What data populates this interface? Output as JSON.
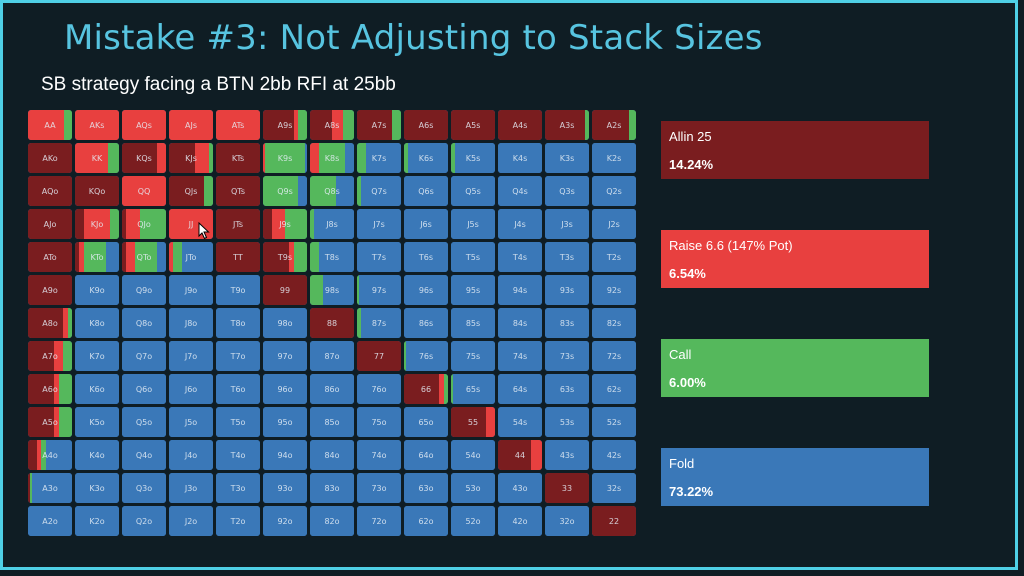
{
  "title": "Mistake #3: Not Adjusting to Stack Sizes",
  "subtitle": "SB strategy facing a BTN 2bb RFI at 25bb",
  "colors": {
    "allin": "#7a1d1f",
    "raise": "#e8403f",
    "call": "#55b85c",
    "fold": "#3a78b8",
    "accent": "#4fd0e6"
  },
  "legend": [
    {
      "label": "Allin 25",
      "pct": "14.24%",
      "color": "#7a1d1f"
    },
    {
      "label": "Raise 6.6 (147% Pot)",
      "pct": "6.54%",
      "color": "#e8403f"
    },
    {
      "label": "Call",
      "pct": "6.00%",
      "color": "#55b85c"
    },
    {
      "label": "Fold",
      "pct": "73.22%",
      "color": "#3a78b8"
    }
  ],
  "hands": [
    {
      "label": "AA",
      "mix": [
        0,
        0.82,
        0.18,
        0
      ]
    },
    {
      "label": "AKs",
      "mix": [
        0,
        1,
        0,
        0
      ]
    },
    {
      "label": "AQs",
      "mix": [
        0,
        1,
        0,
        0
      ]
    },
    {
      "label": "AJs",
      "mix": [
        0,
        1,
        0,
        0
      ]
    },
    {
      "label": "ATs",
      "mix": [
        0,
        1,
        0,
        0
      ]
    },
    {
      "label": "A9s",
      "mix": [
        0.7,
        0.1,
        0.2,
        0
      ]
    },
    {
      "label": "A8s",
      "mix": [
        0.5,
        0.25,
        0.25,
        0
      ]
    },
    {
      "label": "A7s",
      "mix": [
        0.8,
        0,
        0.2,
        0
      ]
    },
    {
      "label": "A6s",
      "mix": [
        1,
        0,
        0,
        0
      ]
    },
    {
      "label": "A5s",
      "mix": [
        1,
        0,
        0,
        0
      ]
    },
    {
      "label": "A4s",
      "mix": [
        1,
        0,
        0,
        0
      ]
    },
    {
      "label": "A3s",
      "mix": [
        0.9,
        0,
        0.1,
        0
      ]
    },
    {
      "label": "A2s",
      "mix": [
        0.85,
        0,
        0.15,
        0
      ]
    },
    {
      "label": "AKo",
      "mix": [
        1,
        0,
        0,
        0
      ]
    },
    {
      "label": "KK",
      "mix": [
        0,
        0.75,
        0.25,
        0
      ]
    },
    {
      "label": "KQs",
      "mix": [
        0.8,
        0.2,
        0,
        0
      ]
    },
    {
      "label": "KJs",
      "mix": [
        0.6,
        0.3,
        0.1,
        0
      ]
    },
    {
      "label": "KTs",
      "mix": [
        1,
        0,
        0,
        0
      ]
    },
    {
      "label": "K9s",
      "mix": [
        0,
        0.05,
        0.9,
        0.05
      ]
    },
    {
      "label": "K8s",
      "mix": [
        0,
        0.2,
        0.6,
        0.2
      ]
    },
    {
      "label": "K7s",
      "mix": [
        0,
        0,
        0.2,
        0.8
      ]
    },
    {
      "label": "K6s",
      "mix": [
        0,
        0,
        0.1,
        0.9
      ]
    },
    {
      "label": "K5s",
      "mix": [
        0,
        0,
        0.1,
        0.9
      ]
    },
    {
      "label": "K4s",
      "mix": [
        0,
        0,
        0,
        1
      ]
    },
    {
      "label": "K3s",
      "mix": [
        0,
        0,
        0,
        1
      ]
    },
    {
      "label": "K2s",
      "mix": [
        0,
        0,
        0,
        1
      ]
    },
    {
      "label": "AQo",
      "mix": [
        1,
        0,
        0,
        0
      ]
    },
    {
      "label": "KQo",
      "mix": [
        1,
        0,
        0,
        0
      ]
    },
    {
      "label": "QQ",
      "mix": [
        0,
        1,
        0,
        0
      ]
    },
    {
      "label": "QJs",
      "mix": [
        0.8,
        0,
        0.2,
        0
      ]
    },
    {
      "label": "QTs",
      "mix": [
        1,
        0,
        0,
        0
      ]
    },
    {
      "label": "Q9s",
      "mix": [
        0,
        0,
        0.8,
        0.2
      ]
    },
    {
      "label": "Q8s",
      "mix": [
        0,
        0,
        0.6,
        0.4
      ]
    },
    {
      "label": "Q7s",
      "mix": [
        0,
        0,
        0.1,
        0.9
      ]
    },
    {
      "label": "Q6s",
      "mix": [
        0,
        0,
        0,
        1
      ]
    },
    {
      "label": "Q5s",
      "mix": [
        0,
        0,
        0,
        1
      ]
    },
    {
      "label": "Q4s",
      "mix": [
        0,
        0,
        0,
        1
      ]
    },
    {
      "label": "Q3s",
      "mix": [
        0,
        0,
        0,
        1
      ]
    },
    {
      "label": "Q2s",
      "mix": [
        0,
        0,
        0,
        1
      ]
    },
    {
      "label": "AJo",
      "mix": [
        1,
        0,
        0,
        0
      ]
    },
    {
      "label": "KJo",
      "mix": [
        0.2,
        0.6,
        0.2,
        0
      ]
    },
    {
      "label": "QJo",
      "mix": [
        0.1,
        0.3,
        0.6,
        0
      ]
    },
    {
      "label": "JJ",
      "mix": [
        0,
        1,
        0,
        0
      ]
    },
    {
      "label": "JTs",
      "mix": [
        1,
        0,
        0,
        0
      ]
    },
    {
      "label": "J9s",
      "mix": [
        0.2,
        0.3,
        0.5,
        0
      ]
    },
    {
      "label": "J8s",
      "mix": [
        0,
        0,
        0.1,
        0.9
      ]
    },
    {
      "label": "J7s",
      "mix": [
        0,
        0,
        0,
        1
      ]
    },
    {
      "label": "J6s",
      "mix": [
        0,
        0,
        0,
        1
      ]
    },
    {
      "label": "J5s",
      "mix": [
        0,
        0,
        0,
        1
      ]
    },
    {
      "label": "J4s",
      "mix": [
        0,
        0,
        0,
        1
      ]
    },
    {
      "label": "J3s",
      "mix": [
        0,
        0,
        0,
        1
      ]
    },
    {
      "label": "J2s",
      "mix": [
        0,
        0,
        0,
        1
      ]
    },
    {
      "label": "ATo",
      "mix": [
        1,
        0,
        0,
        0
      ]
    },
    {
      "label": "KTo",
      "mix": [
        0.1,
        0.1,
        0.5,
        0.3
      ]
    },
    {
      "label": "QTo",
      "mix": [
        0.1,
        0.2,
        0.5,
        0.2
      ]
    },
    {
      "label": "JTo",
      "mix": [
        0,
        0.1,
        0.2,
        0.7
      ]
    },
    {
      "label": "TT",
      "mix": [
        1,
        0,
        0,
        0
      ]
    },
    {
      "label": "T9s",
      "mix": [
        0.6,
        0.1,
        0.3,
        0
      ]
    },
    {
      "label": "T8s",
      "mix": [
        0,
        0,
        0.2,
        0.8
      ]
    },
    {
      "label": "T7s",
      "mix": [
        0,
        0,
        0,
        1
      ]
    },
    {
      "label": "T6s",
      "mix": [
        0,
        0,
        0,
        1
      ]
    },
    {
      "label": "T5s",
      "mix": [
        0,
        0,
        0,
        1
      ]
    },
    {
      "label": "T4s",
      "mix": [
        0,
        0,
        0,
        1
      ]
    },
    {
      "label": "T3s",
      "mix": [
        0,
        0,
        0,
        1
      ]
    },
    {
      "label": "T2s",
      "mix": [
        0,
        0,
        0,
        1
      ]
    },
    {
      "label": "A9o",
      "mix": [
        1,
        0,
        0,
        0
      ]
    },
    {
      "label": "K9o",
      "mix": [
        0,
        0,
        0,
        1
      ]
    },
    {
      "label": "Q9o",
      "mix": [
        0,
        0,
        0,
        1
      ]
    },
    {
      "label": "J9o",
      "mix": [
        0,
        0,
        0,
        1
      ]
    },
    {
      "label": "T9o",
      "mix": [
        0,
        0,
        0,
        1
      ]
    },
    {
      "label": "99",
      "mix": [
        1,
        0,
        0,
        0
      ]
    },
    {
      "label": "98s",
      "mix": [
        0,
        0,
        0.3,
        0.7
      ]
    },
    {
      "label": "97s",
      "mix": [
        0,
        0,
        0.05,
        0.95
      ]
    },
    {
      "label": "96s",
      "mix": [
        0,
        0,
        0,
        1
      ]
    },
    {
      "label": "95s",
      "mix": [
        0,
        0,
        0,
        1
      ]
    },
    {
      "label": "94s",
      "mix": [
        0,
        0,
        0,
        1
      ]
    },
    {
      "label": "93s",
      "mix": [
        0,
        0,
        0,
        1
      ]
    },
    {
      "label": "92s",
      "mix": [
        0,
        0,
        0,
        1
      ]
    },
    {
      "label": "A8o",
      "mix": [
        0.8,
        0.1,
        0.1,
        0
      ]
    },
    {
      "label": "K8o",
      "mix": [
        0,
        0,
        0,
        1
      ]
    },
    {
      "label": "Q8o",
      "mix": [
        0,
        0,
        0,
        1
      ]
    },
    {
      "label": "J8o",
      "mix": [
        0,
        0,
        0,
        1
      ]
    },
    {
      "label": "T8o",
      "mix": [
        0,
        0,
        0,
        1
      ]
    },
    {
      "label": "98o",
      "mix": [
        0,
        0,
        0,
        1
      ]
    },
    {
      "label": "88",
      "mix": [
        1,
        0,
        0,
        0
      ]
    },
    {
      "label": "87s",
      "mix": [
        0,
        0,
        0.1,
        0.9
      ]
    },
    {
      "label": "86s",
      "mix": [
        0,
        0,
        0,
        1
      ]
    },
    {
      "label": "85s",
      "mix": [
        0,
        0,
        0,
        1
      ]
    },
    {
      "label": "84s",
      "mix": [
        0,
        0,
        0,
        1
      ]
    },
    {
      "label": "83s",
      "mix": [
        0,
        0,
        0,
        1
      ]
    },
    {
      "label": "82s",
      "mix": [
        0,
        0,
        0,
        1
      ]
    },
    {
      "label": "A7o",
      "mix": [
        0.6,
        0.2,
        0.2,
        0
      ]
    },
    {
      "label": "K7o",
      "mix": [
        0,
        0,
        0,
        1
      ]
    },
    {
      "label": "Q7o",
      "mix": [
        0,
        0,
        0,
        1
      ]
    },
    {
      "label": "J7o",
      "mix": [
        0,
        0,
        0,
        1
      ]
    },
    {
      "label": "T7o",
      "mix": [
        0,
        0,
        0,
        1
      ]
    },
    {
      "label": "97o",
      "mix": [
        0,
        0,
        0,
        1
      ]
    },
    {
      "label": "87o",
      "mix": [
        0,
        0,
        0,
        1
      ]
    },
    {
      "label": "77",
      "mix": [
        1,
        0,
        0,
        0
      ]
    },
    {
      "label": "76s",
      "mix": [
        0,
        0,
        0.05,
        0.95
      ]
    },
    {
      "label": "75s",
      "mix": [
        0,
        0,
        0,
        1
      ]
    },
    {
      "label": "74s",
      "mix": [
        0,
        0,
        0,
        1
      ]
    },
    {
      "label": "73s",
      "mix": [
        0,
        0,
        0,
        1
      ]
    },
    {
      "label": "72s",
      "mix": [
        0,
        0,
        0,
        1
      ]
    },
    {
      "label": "A6o",
      "mix": [
        0.6,
        0.1,
        0.3,
        0
      ]
    },
    {
      "label": "K6o",
      "mix": [
        0,
        0,
        0,
        1
      ]
    },
    {
      "label": "Q6o",
      "mix": [
        0,
        0,
        0,
        1
      ]
    },
    {
      "label": "J6o",
      "mix": [
        0,
        0,
        0,
        1
      ]
    },
    {
      "label": "T6o",
      "mix": [
        0,
        0,
        0,
        1
      ]
    },
    {
      "label": "96o",
      "mix": [
        0,
        0,
        0,
        1
      ]
    },
    {
      "label": "86o",
      "mix": [
        0,
        0,
        0,
        1
      ]
    },
    {
      "label": "76o",
      "mix": [
        0,
        0,
        0,
        1
      ]
    },
    {
      "label": "66",
      "mix": [
        0.8,
        0.1,
        0.1,
        0
      ]
    },
    {
      "label": "65s",
      "mix": [
        0,
        0,
        0.05,
        0.95
      ]
    },
    {
      "label": "64s",
      "mix": [
        0,
        0,
        0,
        1
      ]
    },
    {
      "label": "63s",
      "mix": [
        0,
        0,
        0,
        1
      ]
    },
    {
      "label": "62s",
      "mix": [
        0,
        0,
        0,
        1
      ]
    },
    {
      "label": "A5o",
      "mix": [
        0.6,
        0.1,
        0.3,
        0
      ]
    },
    {
      "label": "K5o",
      "mix": [
        0,
        0,
        0,
        1
      ]
    },
    {
      "label": "Q5o",
      "mix": [
        0,
        0,
        0,
        1
      ]
    },
    {
      "label": "J5o",
      "mix": [
        0,
        0,
        0,
        1
      ]
    },
    {
      "label": "T5o",
      "mix": [
        0,
        0,
        0,
        1
      ]
    },
    {
      "label": "95o",
      "mix": [
        0,
        0,
        0,
        1
      ]
    },
    {
      "label": "85o",
      "mix": [
        0,
        0,
        0,
        1
      ]
    },
    {
      "label": "75o",
      "mix": [
        0,
        0,
        0,
        1
      ]
    },
    {
      "label": "65o",
      "mix": [
        0,
        0,
        0,
        1
      ]
    },
    {
      "label": "55",
      "mix": [
        0.8,
        0.2,
        0,
        0
      ]
    },
    {
      "label": "54s",
      "mix": [
        0,
        0,
        0,
        1
      ]
    },
    {
      "label": "53s",
      "mix": [
        0,
        0,
        0,
        1
      ]
    },
    {
      "label": "52s",
      "mix": [
        0,
        0,
        0,
        1
      ]
    },
    {
      "label": "A4o",
      "mix": [
        0.2,
        0.1,
        0.1,
        0.6
      ]
    },
    {
      "label": "K4o",
      "mix": [
        0,
        0,
        0,
        1
      ]
    },
    {
      "label": "Q4o",
      "mix": [
        0,
        0,
        0,
        1
      ]
    },
    {
      "label": "J4o",
      "mix": [
        0,
        0,
        0,
        1
      ]
    },
    {
      "label": "T4o",
      "mix": [
        0,
        0,
        0,
        1
      ]
    },
    {
      "label": "94o",
      "mix": [
        0,
        0,
        0,
        1
      ]
    },
    {
      "label": "84o",
      "mix": [
        0,
        0,
        0,
        1
      ]
    },
    {
      "label": "74o",
      "mix": [
        0,
        0,
        0,
        1
      ]
    },
    {
      "label": "64o",
      "mix": [
        0,
        0,
        0,
        1
      ]
    },
    {
      "label": "54o",
      "mix": [
        0,
        0,
        0,
        1
      ]
    },
    {
      "label": "44",
      "mix": [
        0.75,
        0.25,
        0,
        0
      ]
    },
    {
      "label": "43s",
      "mix": [
        0,
        0,
        0,
        1
      ]
    },
    {
      "label": "42s",
      "mix": [
        0,
        0,
        0,
        1
      ]
    },
    {
      "label": "A3o",
      "mix": [
        0.05,
        0,
        0.05,
        0.9
      ]
    },
    {
      "label": "K3o",
      "mix": [
        0,
        0,
        0,
        1
      ]
    },
    {
      "label": "Q3o",
      "mix": [
        0,
        0,
        0,
        1
      ]
    },
    {
      "label": "J3o",
      "mix": [
        0,
        0,
        0,
        1
      ]
    },
    {
      "label": "T3o",
      "mix": [
        0,
        0,
        0,
        1
      ]
    },
    {
      "label": "93o",
      "mix": [
        0,
        0,
        0,
        1
      ]
    },
    {
      "label": "83o",
      "mix": [
        0,
        0,
        0,
        1
      ]
    },
    {
      "label": "73o",
      "mix": [
        0,
        0,
        0,
        1
      ]
    },
    {
      "label": "63o",
      "mix": [
        0,
        0,
        0,
        1
      ]
    },
    {
      "label": "53o",
      "mix": [
        0,
        0,
        0,
        1
      ]
    },
    {
      "label": "43o",
      "mix": [
        0,
        0,
        0,
        1
      ]
    },
    {
      "label": "33",
      "mix": [
        1,
        0,
        0,
        0
      ]
    },
    {
      "label": "32s",
      "mix": [
        0,
        0,
        0,
        1
      ]
    },
    {
      "label": "A2o",
      "mix": [
        0,
        0,
        0,
        1
      ]
    },
    {
      "label": "K2o",
      "mix": [
        0,
        0,
        0,
        1
      ]
    },
    {
      "label": "Q2o",
      "mix": [
        0,
        0,
        0,
        1
      ]
    },
    {
      "label": "J2o",
      "mix": [
        0,
        0,
        0,
        1
      ]
    },
    {
      "label": "T2o",
      "mix": [
        0,
        0,
        0,
        1
      ]
    },
    {
      "label": "92o",
      "mix": [
        0,
        0,
        0,
        1
      ]
    },
    {
      "label": "82o",
      "mix": [
        0,
        0,
        0,
        1
      ]
    },
    {
      "label": "72o",
      "mix": [
        0,
        0,
        0,
        1
      ]
    },
    {
      "label": "62o",
      "mix": [
        0,
        0,
        0,
        1
      ]
    },
    {
      "label": "52o",
      "mix": [
        0,
        0,
        0,
        1
      ]
    },
    {
      "label": "42o",
      "mix": [
        0,
        0,
        0,
        1
      ]
    },
    {
      "label": "32o",
      "mix": [
        0,
        0,
        0,
        1
      ]
    },
    {
      "label": "22",
      "mix": [
        1,
        0,
        0,
        0
      ]
    }
  ]
}
